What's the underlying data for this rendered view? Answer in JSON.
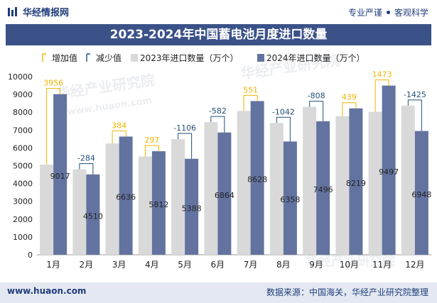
{
  "header": {
    "brand": "华经情报网",
    "tag_left": "专业严谨",
    "tag_right": "客观科学"
  },
  "footer": {
    "site": "www.huaon.com",
    "source": "数据来源：中国海关，华经产业研究院整理"
  },
  "watermarks": {
    "line1": "华经产业研究院",
    "line2": "www.huaon.com"
  },
  "colors": {
    "title_bar": "#3b5289",
    "series_2023": "#d9d9d9",
    "series_2024": "#6373a0",
    "increase": "#f0b400",
    "decrease": "#1f4e79"
  },
  "chart_data": {
    "type": "bar",
    "title": "2023-2024年中国蓄电池月度进口数量",
    "categories": [
      "1月",
      "2月",
      "3月",
      "4月",
      "5月",
      "6月",
      "7月",
      "8月",
      "9月",
      "10月",
      "11月",
      "12月"
    ],
    "series": [
      {
        "name": "2023年进口数量（万个）",
        "values": [
          5061,
          4794,
          6252,
          5515,
          6494,
          7446,
          8077,
          7400,
          8304,
          7780,
          8024,
          8373
        ]
      },
      {
        "name": "2024年进口数量（万个）",
        "values": [
          9017,
          4510,
          6636,
          5812,
          5388,
          6864,
          8628,
          6358,
          7496,
          8219,
          9497,
          6948
        ]
      }
    ],
    "changes": [
      3956,
      -284,
      384,
      297,
      -1106,
      -582,
      551,
      -1042,
      -808,
      439,
      1473,
      -1425
    ],
    "legend": [
      "增加值",
      "减少值",
      "2023年进口数量（万个）",
      "2024年进口数量（万个）"
    ],
    "legend_position": "top",
    "ylim": [
      0,
      10000
    ],
    "yticks": [
      0,
      1000,
      2000,
      3000,
      4000,
      5000,
      6000,
      7000,
      8000,
      9000,
      10000
    ],
    "grid": false
  }
}
